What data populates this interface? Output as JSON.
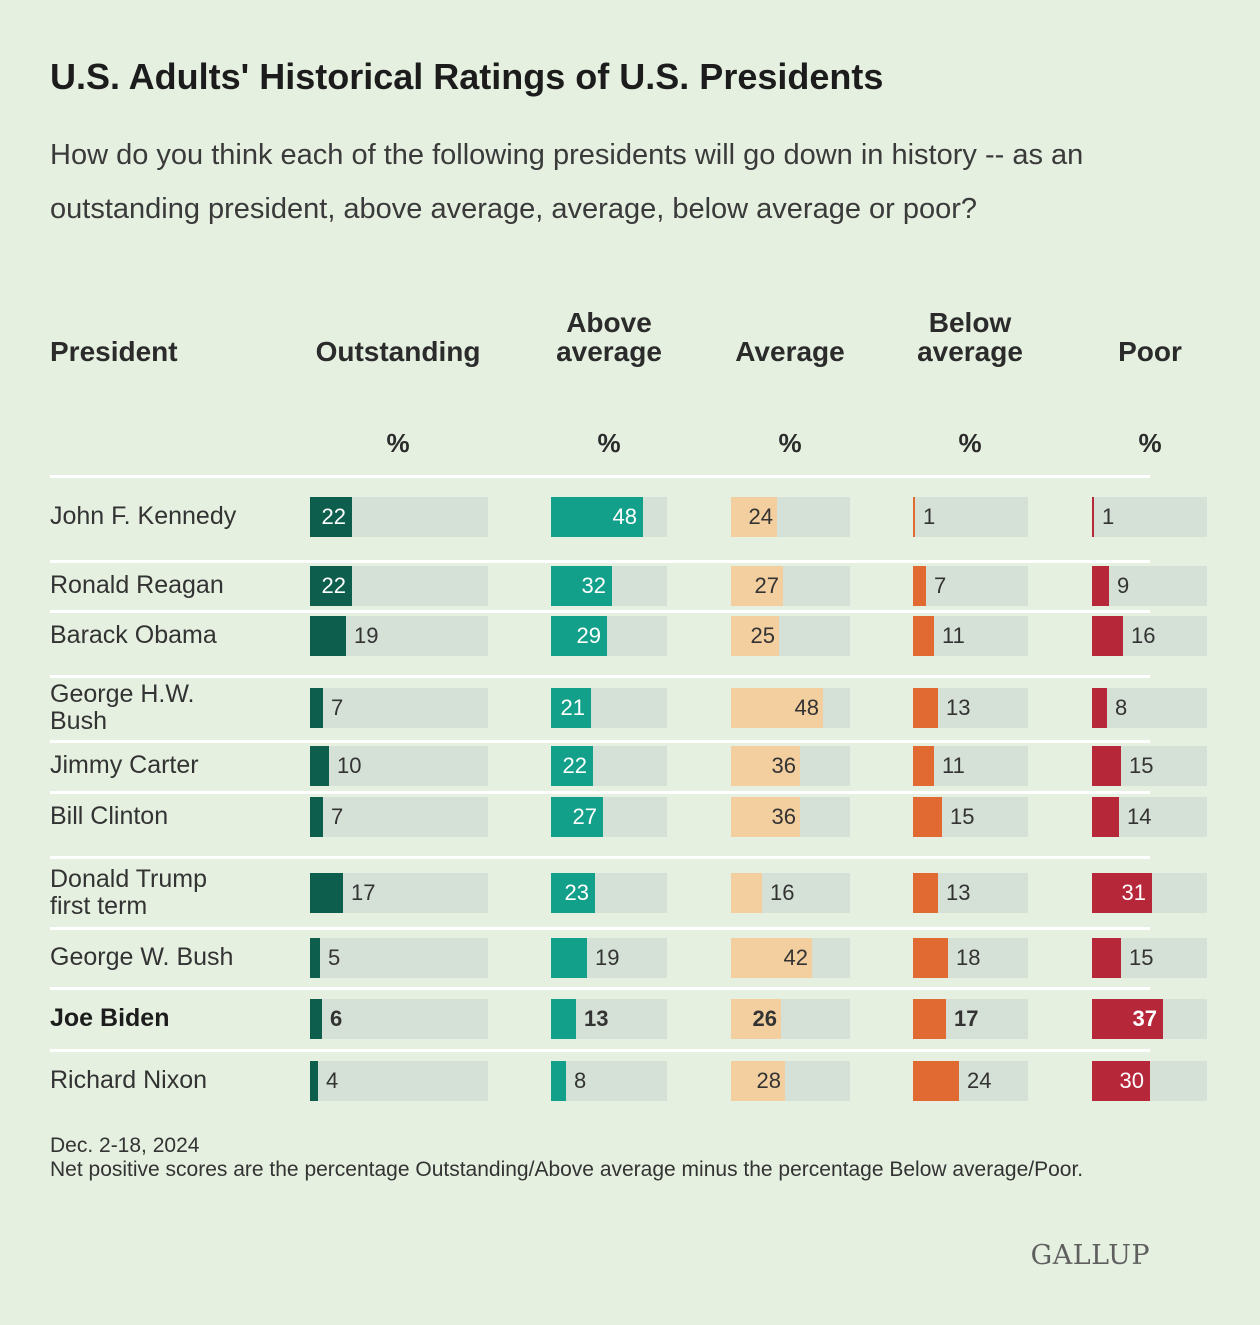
{
  "title": "U.S. Adults' Historical Ratings of U.S. Presidents",
  "subtitle": "How do you think each of the following presidents will go down in history -- as an outstanding president, above average, average, below average or poor?",
  "table": {
    "president_header": "President",
    "columns": [
      {
        "key": "outstanding",
        "label": "Outstanding",
        "unit": "%",
        "color": "#0e5e4e",
        "text_inside": true
      },
      {
        "key": "above_average",
        "label": "Above average",
        "unit": "%",
        "color": "#13a08a",
        "text_inside": true
      },
      {
        "key": "average",
        "label": "Average",
        "unit": "%",
        "color": "#f3cfa0",
        "text_inside": false
      },
      {
        "key": "below_average",
        "label": "Below average",
        "unit": "%",
        "color": "#e06a32",
        "text_inside": false
      },
      {
        "key": "poor",
        "label": "Poor",
        "unit": "%",
        "color": "#b6273a",
        "text_inside": true
      }
    ]
  },
  "chart_data": {
    "type": "table",
    "title": "U.S. Adults' Historical Ratings of U.S. Presidents",
    "categories": [
      "Outstanding",
      "Above average",
      "Average",
      "Below average",
      "Poor"
    ],
    "rows": [
      {
        "president": "John F. Kennedy",
        "values": [
          22,
          48,
          24,
          1,
          1
        ],
        "bold": false
      },
      {
        "president": "Ronald Reagan",
        "values": [
          22,
          32,
          27,
          7,
          9
        ],
        "bold": false
      },
      {
        "president": "Barack Obama",
        "values": [
          19,
          29,
          25,
          11,
          16
        ],
        "bold": false
      },
      {
        "president": "George H.W. Bush",
        "values": [
          7,
          21,
          48,
          13,
          8
        ],
        "bold": false
      },
      {
        "president": "Jimmy Carter",
        "values": [
          10,
          22,
          36,
          11,
          15
        ],
        "bold": false
      },
      {
        "president": "Bill Clinton",
        "values": [
          7,
          27,
          36,
          15,
          14
        ],
        "bold": false
      },
      {
        "president": "Donald Trump first term",
        "values": [
          17,
          23,
          16,
          13,
          31
        ],
        "bold": false
      },
      {
        "president": "George W. Bush",
        "values": [
          5,
          19,
          42,
          18,
          15
        ],
        "bold": false
      },
      {
        "president": "Joe Biden",
        "values": [
          6,
          13,
          26,
          17,
          37
        ],
        "bold": true
      },
      {
        "president": "Richard Nixon",
        "values": [
          4,
          8,
          28,
          24,
          30
        ],
        "bold": false
      }
    ]
  },
  "footer": {
    "date": "Dec. 2-18, 2024",
    "note": "Net positive scores are the percentage Outstanding/Above average minus the percentage Below average/Poor."
  },
  "brand": "GALLUP"
}
